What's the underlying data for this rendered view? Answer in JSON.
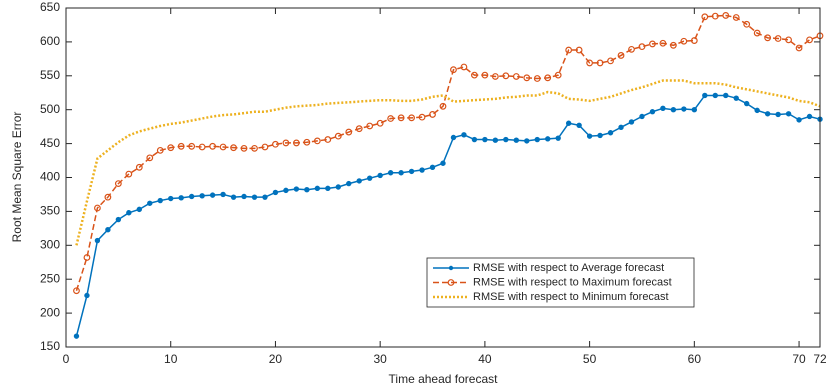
{
  "chart_data": {
    "type": "line",
    "x_label": "Time ahead forecast",
    "y_label": "Root Mean Square Error",
    "x": [
      1,
      2,
      3,
      4,
      5,
      6,
      7,
      8,
      9,
      10,
      11,
      12,
      13,
      14,
      15,
      16,
      17,
      18,
      19,
      20,
      21,
      22,
      23,
      24,
      25,
      26,
      27,
      28,
      29,
      30,
      31,
      32,
      33,
      34,
      35,
      36,
      37,
      38,
      39,
      40,
      41,
      42,
      43,
      44,
      45,
      46,
      47,
      48,
      49,
      50,
      51,
      52,
      53,
      54,
      55,
      56,
      57,
      58,
      59,
      60,
      61,
      62,
      63,
      64,
      65,
      66,
      67,
      68,
      69,
      70,
      71,
      72
    ],
    "series": [
      {
        "name": "RMSE with respect to Average forecast",
        "color": "#0072bd",
        "line_style": "solid",
        "marker": "dot",
        "values": [
          166,
          226,
          307,
          323,
          338,
          348,
          353,
          362,
          366,
          369,
          370,
          372,
          373,
          374,
          375,
          371,
          372,
          371,
          371,
          378,
          381,
          383,
          382,
          384,
          384,
          386,
          391,
          395,
          399,
          403,
          407,
          407,
          409,
          411,
          415,
          421,
          459,
          463,
          456,
          456,
          455,
          456,
          455,
          454,
          456,
          457,
          458,
          480,
          477,
          461,
          462,
          466,
          474,
          482,
          490,
          497,
          502,
          500,
          501,
          500,
          521,
          521,
          521,
          517,
          509,
          499,
          494,
          493,
          494,
          485,
          490,
          486
        ]
      },
      {
        "name": "RMSE with respect to Maximum forecast",
        "color": "#d95319",
        "line_style": "dashed",
        "marker": "circle",
        "values": [
          233,
          282,
          355,
          371,
          391,
          405,
          415,
          429,
          440,
          444,
          446,
          446,
          445,
          446,
          445,
          444,
          443,
          443,
          445,
          449,
          451,
          451,
          452,
          454,
          456,
          461,
          467,
          472,
          476,
          480,
          487,
          488,
          488,
          489,
          493,
          505,
          559,
          563,
          551,
          551,
          549,
          550,
          549,
          547,
          546,
          547,
          551,
          588,
          588,
          569,
          569,
          572,
          580,
          589,
          593,
          597,
          598,
          595,
          601,
          602,
          637,
          638,
          639,
          636,
          626,
          613,
          606,
          605,
          603,
          591,
          603,
          609
        ]
      },
      {
        "name": "RMSE with respect to Minimum forecast",
        "color": "#edb120",
        "line_style": "dotted",
        "marker": "none",
        "values": [
          300,
          365,
          428,
          440,
          452,
          462,
          468,
          472,
          476,
          479,
          481,
          484,
          487,
          490,
          492,
          493,
          495,
          497,
          497,
          500,
          503,
          505,
          506,
          507,
          509,
          510,
          511,
          512,
          513,
          514,
          514,
          513,
          513,
          515,
          519,
          521,
          512,
          513,
          514,
          515,
          516,
          518,
          519,
          521,
          521,
          526,
          524,
          516,
          515,
          513,
          516,
          519,
          524,
          529,
          533,
          538,
          543,
          543,
          543,
          539,
          539,
          539,
          537,
          533,
          530,
          527,
          524,
          521,
          518,
          513,
          511,
          505
        ]
      }
    ],
    "xlim": [
      0,
      72
    ],
    "xticks": [
      0,
      10,
      20,
      30,
      40,
      50,
      60,
      70,
      72
    ],
    "ylim": [
      150,
      650
    ],
    "yticks": [
      150,
      200,
      250,
      300,
      350,
      400,
      450,
      500,
      550,
      600,
      650
    ],
    "legend_position": "lower right"
  }
}
